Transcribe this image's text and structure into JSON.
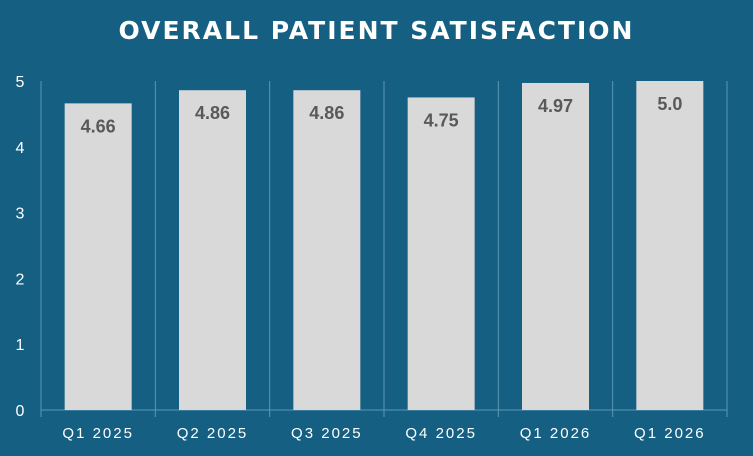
{
  "chart_data": {
    "type": "bar",
    "title": "OVERALL PATIENT SATISFACTION",
    "xlabel": "",
    "ylabel": "",
    "categories": [
      "Q1 2025",
      "Q2 2025",
      "Q3 2025",
      "Q4 2025",
      "Q1 2026",
      "Q1 2026"
    ],
    "values": [
      4.66,
      4.86,
      4.86,
      4.75,
      4.97,
      5.0
    ],
    "data_labels": [
      "4.66",
      "4.86",
      "4.86",
      "4.75",
      "4.97",
      "5.0"
    ],
    "ylim": [
      0,
      5
    ],
    "yticks": [
      "0",
      "1",
      "2",
      "3",
      "4",
      "5"
    ],
    "grid": "vertical separators between categories",
    "legend": "none",
    "colors": {
      "background": "#145f82",
      "bar": "#d9d9d9",
      "data_label": "#595959",
      "axis_text": "#ffffff",
      "gridline": "#5d97b5"
    }
  }
}
